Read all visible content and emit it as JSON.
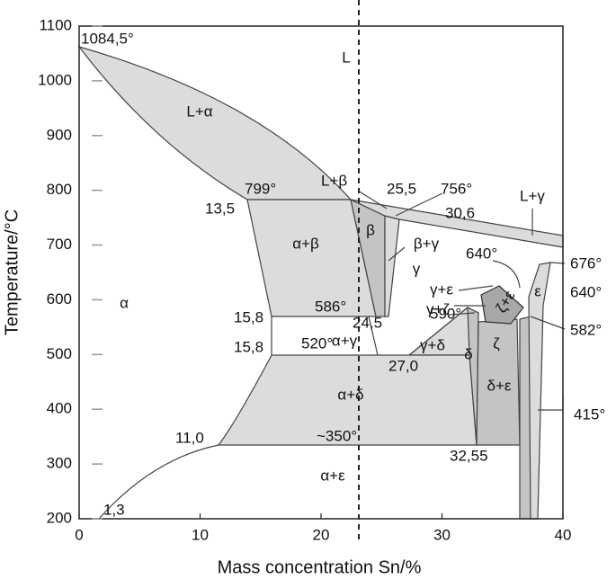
{
  "chart_data": {
    "type": "phase-diagram",
    "xlabel": "Mass concentration Sn/%",
    "ylabel": "Temperature/°C",
    "xlim": [
      0,
      40
    ],
    "ylim": [
      200,
      1100
    ],
    "xticks": [
      0,
      10,
      20,
      30,
      40
    ],
    "yticks": [
      200,
      300,
      400,
      500,
      600,
      700,
      800,
      900,
      1000,
      1100
    ],
    "annotations": [
      "1084,5°",
      "L",
      "L+α",
      "799°",
      "L+β",
      "25,5",
      "756°",
      "30,6",
      "L+γ",
      "13,5",
      "α+β",
      "β",
      "β+γ",
      "γ",
      "640°",
      "676°",
      "γ+ε",
      "γ+ζ",
      "640°",
      "α",
      "15,8",
      "586°",
      "24,5",
      "590°",
      "ε",
      "ζ+ε",
      "ζ",
      "582°",
      "15,8",
      "520°",
      "α+γ",
      "27,0",
      "γ+δ",
      "δ",
      "δ+ε",
      "α+δ",
      "415°",
      "11,0",
      "~350°",
      "32,55",
      "α+ε",
      "1,3"
    ]
  }
}
